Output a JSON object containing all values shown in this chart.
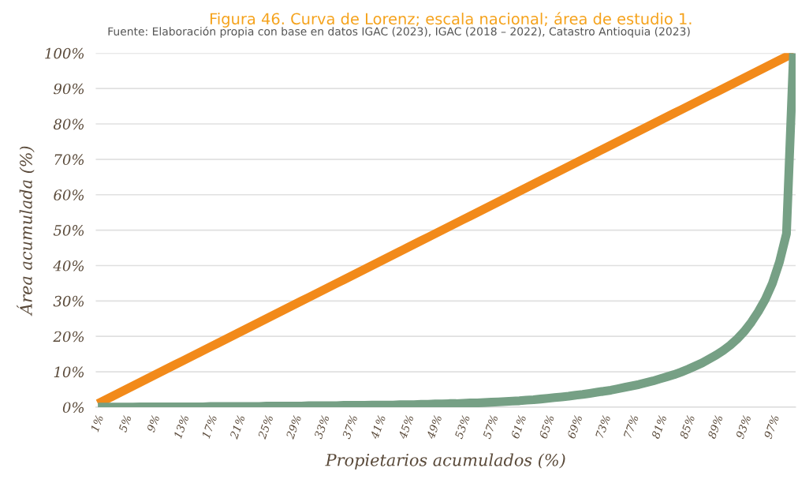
{
  "chart_data": {
    "type": "line",
    "title": "Figura 46. Curva de Lorenz; escala nacional; área de estudio 1.",
    "subtitle": "Fuente: Elaboración propia con base en datos IGAC (2023), IGAC (2018 – 2022), Catastro Antioquia (2023)",
    "xlabel": "Propietarios acumulados (%)",
    "ylabel": "Área acumulada (%)",
    "categories": [
      "1%",
      null,
      null,
      null,
      "5%",
      null,
      null,
      null,
      "9%",
      null,
      null,
      null,
      "13%",
      null,
      null,
      null,
      "17%",
      null,
      null,
      null,
      "21%",
      null,
      null,
      null,
      "25%",
      null,
      null,
      null,
      "29%",
      null,
      null,
      null,
      "33%",
      null,
      null,
      null,
      "37%",
      null,
      null,
      null,
      "41%",
      null,
      null,
      null,
      "45%",
      null,
      null,
      null,
      "49%",
      null,
      null,
      null,
      "53%",
      null,
      null,
      null,
      "57%",
      null,
      null,
      null,
      "61%",
      null,
      null,
      null,
      "65%",
      null,
      null,
      null,
      "69%",
      null,
      null,
      null,
      "73%",
      null,
      null,
      null,
      "77%",
      null,
      null,
      null,
      "81%",
      null,
      null,
      null,
      "85%",
      null,
      null,
      null,
      "89%",
      null,
      null,
      null,
      "93%",
      null,
      null,
      null,
      "97%",
      null,
      null,
      null
    ],
    "series": [
      {
        "color": "#f28a1a",
        "values": [
          1,
          2,
          3,
          4,
          5,
          6,
          7,
          8,
          9,
          10,
          11,
          12,
          13,
          14,
          15,
          16,
          17,
          18,
          19,
          20,
          21,
          22,
          23,
          24,
          25,
          26,
          27,
          28,
          29,
          30,
          31,
          32,
          33,
          34,
          35,
          36,
          37,
          38,
          39,
          40,
          41,
          42,
          43,
          44,
          45,
          46,
          47,
          48,
          49,
          50,
          51,
          52,
          53,
          54,
          55,
          56,
          57,
          58,
          59,
          60,
          61,
          62,
          63,
          64,
          65,
          66,
          67,
          68,
          69,
          70,
          71,
          72,
          73,
          74,
          75,
          76,
          77,
          78,
          79,
          80,
          81,
          82,
          83,
          84,
          85,
          86,
          87,
          88,
          89,
          90,
          91,
          92,
          93,
          94,
          95,
          96,
          97,
          98,
          99,
          100
        ]
      },
      {
        "color": "#76a085",
        "values": [
          0.0,
          0.0,
          0.0,
          0.0,
          0.0,
          0.0,
          0.1,
          0.1,
          0.1,
          0.1,
          0.1,
          0.1,
          0.1,
          0.1,
          0.1,
          0.1,
          0.2,
          0.2,
          0.2,
          0.2,
          0.2,
          0.2,
          0.2,
          0.2,
          0.3,
          0.3,
          0.3,
          0.3,
          0.3,
          0.3,
          0.4,
          0.4,
          0.4,
          0.4,
          0.4,
          0.5,
          0.5,
          0.5,
          0.5,
          0.6,
          0.6,
          0.6,
          0.6,
          0.7,
          0.7,
          0.7,
          0.8,
          0.8,
          0.9,
          0.9,
          1.0,
          1.0,
          1.1,
          1.2,
          1.2,
          1.3,
          1.4,
          1.5,
          1.6,
          1.7,
          1.8,
          2.0,
          2.1,
          2.3,
          2.5,
          2.7,
          2.9,
          3.1,
          3.4,
          3.6,
          3.9,
          4.2,
          4.5,
          4.8,
          5.2,
          5.6,
          6.0,
          6.4,
          6.9,
          7.4,
          8.0,
          8.6,
          9.2,
          9.9,
          10.7,
          11.6,
          12.5,
          13.6,
          14.7,
          16.0,
          17.5,
          19.3,
          21.4,
          24.0,
          27.0,
          30.5,
          35.0,
          41.0,
          49.0,
          100
        ]
      }
    ],
    "ylim": [
      0,
      100
    ],
    "yticks": [
      {
        "value": 0,
        "label": "0%"
      },
      {
        "value": 10,
        "label": "10%"
      },
      {
        "value": 20,
        "label": "20%"
      },
      {
        "value": 30,
        "label": "30%"
      },
      {
        "value": 40,
        "label": "40%"
      },
      {
        "value": 50,
        "label": "50%"
      },
      {
        "value": 60,
        "label": "60%"
      },
      {
        "value": 70,
        "label": "70%"
      },
      {
        "value": 80,
        "label": "80%"
      },
      {
        "value": 90,
        "label": "90%"
      },
      {
        "value": 100,
        "label": "100%"
      }
    ],
    "grid": "y",
    "line_style": "solid"
  }
}
